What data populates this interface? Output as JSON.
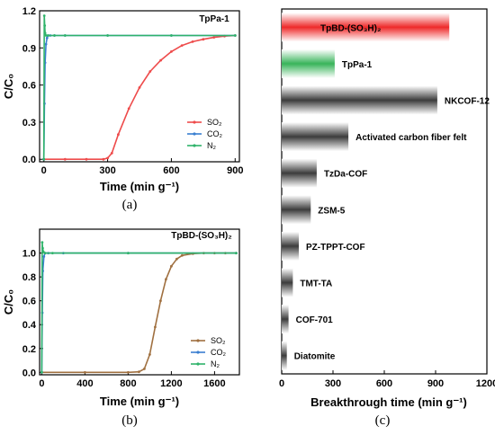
{
  "chart_data": [
    {
      "panel": "(a)",
      "type": "line",
      "title": "TpPa-1",
      "xlabel": "Time (min g⁻¹)",
      "ylabel": "C/C₀",
      "xlim": [
        -20,
        920
      ],
      "ylim": [
        -0.02,
        1.2
      ],
      "xticks": [
        "0",
        "300",
        "600",
        "900"
      ],
      "yticks": [
        "0.0",
        "0.3",
        "0.6",
        "0.9",
        "1.2"
      ],
      "legend_position": "bottom-right",
      "colors": {
        "SO2": "#ee4b4b",
        "CO2": "#3a7fd0",
        "N2": "#2fb36a"
      },
      "series": [
        {
          "name": "SO₂",
          "x": [
            0,
            100,
            200,
            280,
            300,
            320,
            350,
            400,
            450,
            500,
            550,
            600,
            650,
            700,
            750,
            800,
            850,
            900
          ],
          "y": [
            0,
            0,
            0,
            0,
            0.01,
            0.05,
            0.2,
            0.41,
            0.58,
            0.71,
            0.8,
            0.87,
            0.92,
            0.95,
            0.97,
            0.985,
            0.995,
            1.0
          ]
        },
        {
          "name": "CO₂",
          "x": [
            0,
            3,
            6,
            10,
            15,
            20,
            30,
            50,
            100,
            300,
            600,
            900
          ],
          "y": [
            0,
            0.45,
            0.78,
            0.93,
            0.98,
            1.0,
            1.0,
            1.0,
            1.0,
            1.0,
            1.0,
            1.0
          ]
        },
        {
          "name": "N₂",
          "x": [
            0,
            2,
            4,
            6,
            10,
            20,
            50,
            100,
            300,
            600,
            900
          ],
          "y": [
            0,
            1.16,
            1.08,
            1.02,
            1.0,
            1.0,
            1.0,
            1.0,
            1.0,
            1.0,
            1.0
          ]
        }
      ]
    },
    {
      "panel": "(b)",
      "type": "line",
      "title": "TpBD-(SO₃H)₂",
      "xlabel": "Time (min g⁻¹)",
      "ylabel": "C/C₀",
      "xlim": [
        -20,
        1830
      ],
      "ylim": [
        -0.02,
        1.2
      ],
      "xticks": [
        "0",
        "400",
        "800",
        "1200",
        "1600"
      ],
      "yticks": [
        "0.0",
        "0.2",
        "0.4",
        "0.6",
        "0.8",
        "1.0"
      ],
      "legend_position": "bottom-right",
      "colors": {
        "SO2": "#a07040",
        "CO2": "#3a7fd0",
        "N2": "#2fb36a"
      },
      "series": [
        {
          "name": "SO₂",
          "x": [
            0,
            400,
            800,
            900,
            950,
            1000,
            1050,
            1100,
            1150,
            1200,
            1250,
            1300,
            1400,
            1500,
            1600,
            1700,
            1800
          ],
          "y": [
            0,
            0,
            0,
            0.005,
            0.03,
            0.15,
            0.38,
            0.6,
            0.78,
            0.89,
            0.95,
            0.98,
            0.995,
            1.0,
            1.0,
            1.0,
            1.0
          ]
        },
        {
          "name": "CO₂",
          "x": [
            0,
            5,
            10,
            20,
            30,
            60,
            200,
            800,
            1800
          ],
          "y": [
            0,
            0.5,
            0.85,
            0.97,
            1.0,
            1.0,
            1.0,
            1.0,
            1.0
          ]
        },
        {
          "name": "N₂",
          "x": [
            0,
            4,
            8,
            15,
            30,
            100,
            800,
            1800
          ],
          "y": [
            0,
            1.09,
            1.04,
            1.01,
            1.0,
            1.0,
            1.0,
            1.0
          ]
        }
      ]
    },
    {
      "panel": "(c)",
      "type": "bar",
      "orientation": "horizontal",
      "xlabel": "Breakthrough time (min g⁻¹)",
      "xlim": [
        0,
        1200
      ],
      "xticks": [
        "0",
        "300",
        "600",
        "900",
        "1200"
      ],
      "colors": {
        "highlight1": "#ee3030",
        "highlight2": "#3cb85c",
        "other": "#4a4a4a"
      },
      "categories": [
        "TpBD-(SO₃H)₂",
        "TpPa-1",
        "NKCOF-12",
        "Activated carbon fiber felt",
        "TzDa-COF",
        "ZSM-5",
        "PZ-TPPT-COF",
        "TMT-TA",
        "COF-701",
        "Diatomite"
      ],
      "values": [
        980,
        310,
        910,
        390,
        205,
        170,
        100,
        65,
        40,
        30
      ]
    }
  ]
}
